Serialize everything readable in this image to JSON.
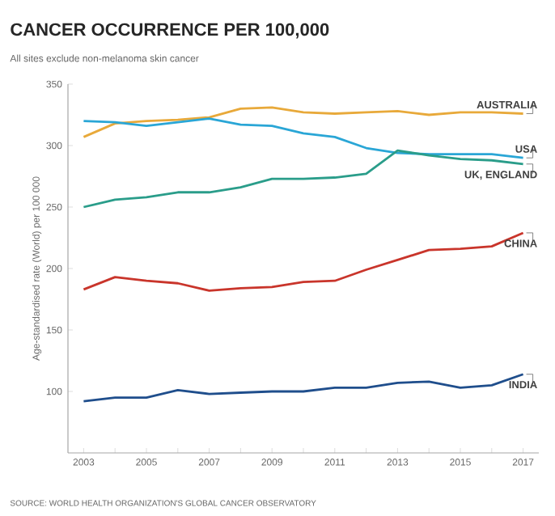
{
  "chart_data": {
    "type": "line",
    "title": "CANCER OCCURRENCE PER 100,000",
    "subtitle": "All sites exclude non-melanoma skin cancer",
    "ylabel": "Age-standardised rate (World) per 100 000",
    "x": [
      2003,
      2004,
      2005,
      2006,
      2007,
      2008,
      2009,
      2010,
      2011,
      2012,
      2013,
      2014,
      2015,
      2016,
      2017
    ],
    "series": [
      {
        "name": "AUSTRALIA",
        "color": "#e8a93a",
        "values": [
          307,
          318,
          320,
          321,
          323,
          330,
          331,
          327,
          326,
          327,
          328,
          325,
          327,
          327,
          326
        ]
      },
      {
        "name": "USA",
        "color": "#2aa6d6",
        "values": [
          320,
          319,
          316,
          319,
          322,
          317,
          316,
          310,
          307,
          298,
          294,
          293,
          293,
          293,
          290
        ]
      },
      {
        "name": "UK, ENGLAND",
        "color": "#2a9d8a",
        "values": [
          250,
          256,
          258,
          262,
          262,
          266,
          273,
          273,
          274,
          277,
          296,
          292,
          289,
          288,
          285
        ]
      },
      {
        "name": "CHINA",
        "color": "#c9352b",
        "values": [
          183,
          193,
          190,
          188,
          182,
          184,
          185,
          189,
          190,
          199,
          207,
          215,
          216,
          218,
          229
        ]
      },
      {
        "name": "INDIA",
        "color": "#1f4e8c",
        "values": [
          92,
          95,
          95,
          101,
          98,
          99,
          100,
          100,
          103,
          103,
          107,
          108,
          103,
          105,
          114
        ]
      }
    ],
    "xlim": [
      2002.5,
      2017.5
    ],
    "ylim": [
      50,
      350
    ],
    "xticks": [
      2003,
      {
        "value": 2004,
        "label": null
      },
      2005,
      {
        "value": 2006,
        "label": null
      },
      2007,
      {
        "value": 2008,
        "label": null
      },
      2009,
      {
        "value": 2010,
        "label": null
      },
      2011,
      {
        "value": 2012,
        "label": null
      },
      2013,
      {
        "value": 2014,
        "label": null
      },
      2015,
      {
        "value": 2016,
        "label": null
      },
      2017
    ],
    "yticks": [
      100,
      150,
      200,
      250,
      300,
      350
    ],
    "annotations": [
      "SOURCE: WORLD HEALTH ORGANIZATION'S GLOBAL CANCER OBSERVATORY"
    ],
    "legend": false,
    "grid": false,
    "marker": "none",
    "line_style": "solid"
  }
}
